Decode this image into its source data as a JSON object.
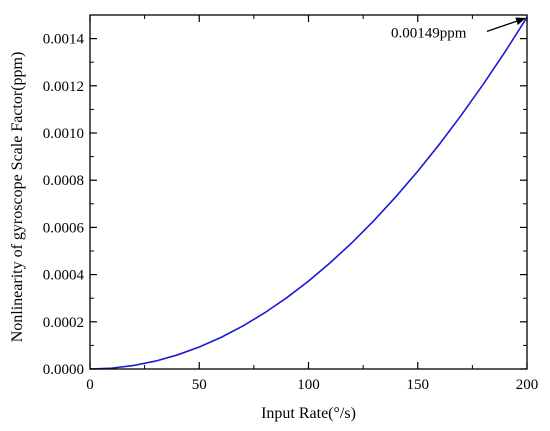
{
  "chart_data": {
    "type": "line",
    "title": "",
    "xlabel": "Input Rate(°/s)",
    "ylabel": "Nonlinearity of gyroscope Scale Factor(ppm)",
    "xlim": [
      0,
      200
    ],
    "ylim": [
      0,
      0.0015
    ],
    "x_ticks": [
      "0",
      "50",
      "100",
      "150",
      "200"
    ],
    "y_ticks": [
      "0.0000",
      "0.0002",
      "0.0004",
      "0.0006",
      "0.0008",
      "0.0010",
      "0.0012",
      "0.0014"
    ],
    "grid": false,
    "series": [
      {
        "color": "#1a1ad6",
        "x": [
          0,
          10,
          20,
          30,
          40,
          50,
          60,
          70,
          80,
          90,
          100,
          110,
          120,
          130,
          140,
          150,
          160,
          170,
          180,
          190,
          200
        ],
        "y": [
          0,
          3.7e-06,
          1.49e-05,
          3.35e-05,
          5.96e-05,
          9.31e-05,
          0.000134,
          0.0001825,
          0.0002384,
          0.0003017,
          0.0003725,
          0.0004507,
          0.0005364,
          0.0006295,
          0.0007301,
          0.0008381,
          0.0009536,
          0.0010765,
          0.0012069,
          0.0013447,
          0.00149
        ]
      }
    ],
    "annotations": [
      {
        "text": "0.00149ppm",
        "x": 200,
        "y": 0.00149
      }
    ]
  }
}
